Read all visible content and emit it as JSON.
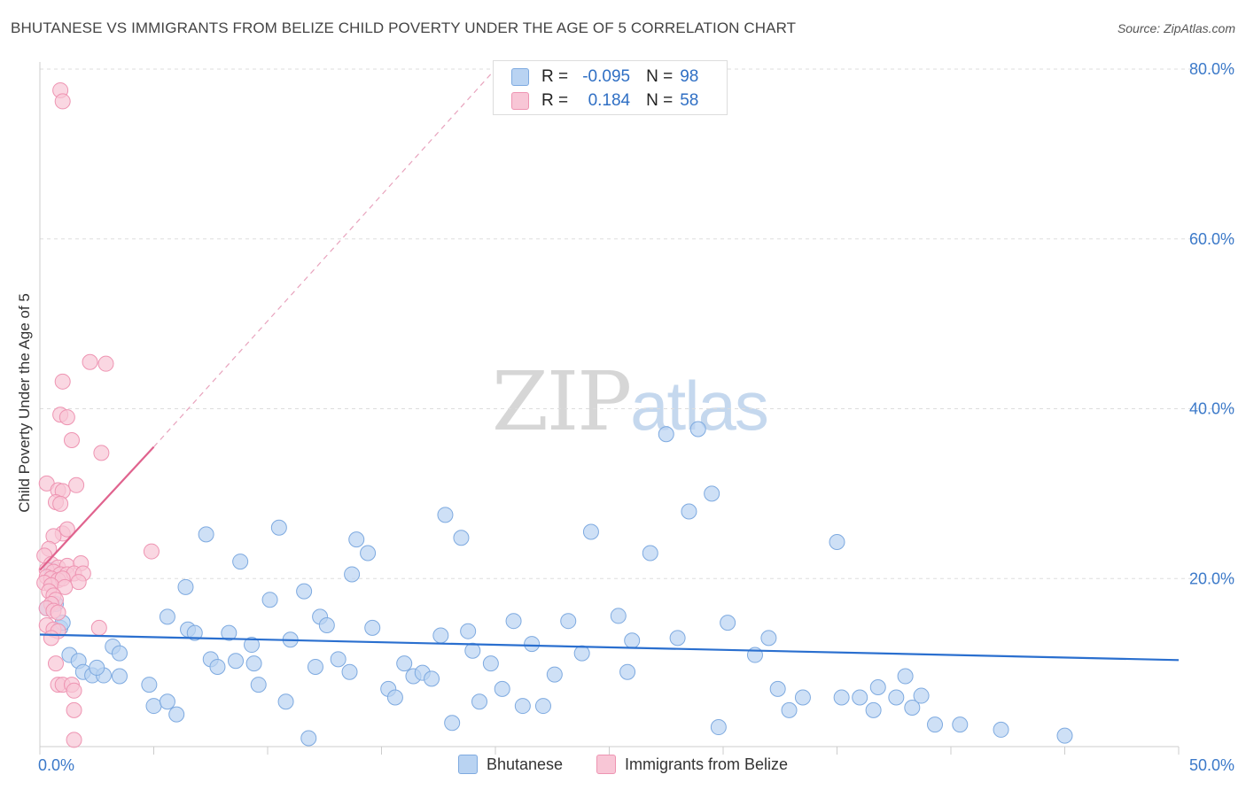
{
  "title": "BHUTANESE VS IMMIGRANTS FROM BELIZE CHILD POVERTY UNDER THE AGE OF 5 CORRELATION CHART",
  "source": "Source: ZipAtlas.com",
  "watermark": {
    "zip": "ZIP",
    "atlas": "atlas"
  },
  "legend_top": {
    "rows": [
      {
        "r_label": "R =",
        "r_value": "-0.095",
        "n_label": "N =",
        "n_value": "98"
      },
      {
        "r_label": "R =",
        "r_value": "0.184",
        "n_label": "N =",
        "n_value": "58"
      }
    ]
  },
  "legend_bottom": {
    "items": [
      "Bhutanese",
      "Immigrants from Belize"
    ]
  },
  "colors": {
    "blue_fill": "#b9d3f2",
    "blue_stroke": "#7eaae0",
    "blue_line": "#2a6fcf",
    "pink_fill": "#f8c6d6",
    "pink_stroke": "#ee94b2",
    "pink_line": "#e0638e",
    "grid": "#dddddd",
    "tick_text": "#3b79c9"
  },
  "chart_data": {
    "type": "scatter",
    "title": "BHUTANESE VS IMMIGRANTS FROM BELIZE CHILD POVERTY UNDER THE AGE OF 5 CORRELATION CHART",
    "xlabel": "",
    "ylabel": "Child Poverty Under the Age of 5",
    "xlim": [
      0,
      50
    ],
    "ylim": [
      0,
      82
    ],
    "x_tick_labels": [
      {
        "value": 0,
        "label": "0.0%"
      },
      {
        "value": 50,
        "label": "50.0%"
      }
    ],
    "y_tick_labels": [
      {
        "value": 20,
        "label": "20.0%"
      },
      {
        "value": 40,
        "label": "40.0%"
      },
      {
        "value": 60,
        "label": "60.0%"
      },
      {
        "value": 80,
        "label": "80.0%"
      }
    ],
    "series": [
      {
        "name": "Bhutanese",
        "r": -0.095,
        "n": 98,
        "trend": {
          "x": [
            0,
            50
          ],
          "y": [
            13.4,
            10.4
          ],
          "style": "solid"
        },
        "points": [
          [
            0.3,
            16.5
          ],
          [
            0.5,
            21.0
          ],
          [
            0.7,
            17.0
          ],
          [
            0.9,
            14.2
          ],
          [
            1.0,
            14.8
          ],
          [
            1.3,
            11.0
          ],
          [
            1.7,
            10.3
          ],
          [
            1.9,
            9.0
          ],
          [
            2.3,
            8.6
          ],
          [
            2.8,
            8.6
          ],
          [
            2.5,
            9.5
          ],
          [
            3.5,
            8.5
          ],
          [
            3.2,
            12.0
          ],
          [
            3.5,
            11.2
          ],
          [
            4.8,
            7.5
          ],
          [
            5.0,
            5.0
          ],
          [
            5.6,
            15.5
          ],
          [
            5.6,
            5.5
          ],
          [
            6.0,
            4.0
          ],
          [
            6.4,
            19.0
          ],
          [
            6.5,
            14.0
          ],
          [
            6.8,
            13.6
          ],
          [
            7.3,
            25.2
          ],
          [
            7.5,
            10.5
          ],
          [
            7.8,
            9.6
          ],
          [
            8.3,
            13.6
          ],
          [
            8.6,
            10.3
          ],
          [
            8.8,
            22.0
          ],
          [
            9.3,
            12.2
          ],
          [
            9.4,
            10.0
          ],
          [
            9.6,
            7.5
          ],
          [
            10.1,
            17.5
          ],
          [
            10.5,
            26.0
          ],
          [
            10.8,
            5.5
          ],
          [
            11.0,
            12.8
          ],
          [
            11.6,
            18.5
          ],
          [
            11.8,
            1.2
          ],
          [
            12.1,
            9.6
          ],
          [
            12.3,
            15.5
          ],
          [
            12.6,
            14.5
          ],
          [
            13.1,
            10.5
          ],
          [
            13.6,
            9.0
          ],
          [
            13.7,
            20.5
          ],
          [
            13.9,
            24.6
          ],
          [
            14.4,
            23.0
          ],
          [
            14.6,
            14.2
          ],
          [
            15.3,
            7.0
          ],
          [
            15.6,
            6.0
          ],
          [
            16.0,
            10.0
          ],
          [
            16.4,
            8.5
          ],
          [
            16.8,
            8.9
          ],
          [
            17.2,
            8.2
          ],
          [
            17.6,
            13.3
          ],
          [
            17.8,
            27.5
          ],
          [
            18.1,
            3.0
          ],
          [
            18.5,
            24.8
          ],
          [
            18.8,
            13.8
          ],
          [
            19.0,
            11.5
          ],
          [
            19.3,
            5.5
          ],
          [
            19.8,
            10.0
          ],
          [
            20.3,
            7.0
          ],
          [
            20.8,
            15.0
          ],
          [
            21.2,
            5.0
          ],
          [
            21.6,
            12.3
          ],
          [
            22.1,
            5.0
          ],
          [
            22.6,
            8.7
          ],
          [
            23.2,
            15.0
          ],
          [
            23.8,
            11.2
          ],
          [
            24.2,
            25.5
          ],
          [
            25.4,
            15.6
          ],
          [
            25.8,
            9.0
          ],
          [
            26.0,
            12.7
          ],
          [
            26.8,
            23.0
          ],
          [
            27.5,
            37.0
          ],
          [
            28.0,
            13.0
          ],
          [
            28.5,
            27.9
          ],
          [
            28.9,
            37.6
          ],
          [
            29.5,
            30.0
          ],
          [
            29.8,
            2.5
          ],
          [
            30.2,
            14.8
          ],
          [
            31.4,
            11.0
          ],
          [
            32.0,
            13.0
          ],
          [
            32.4,
            7.0
          ],
          [
            32.9,
            4.5
          ],
          [
            33.5,
            6.0
          ],
          [
            35.0,
            24.3
          ],
          [
            35.2,
            6.0
          ],
          [
            36.0,
            6.0
          ],
          [
            36.6,
            4.5
          ],
          [
            36.8,
            7.2
          ],
          [
            37.6,
            6.0
          ],
          [
            38.0,
            8.5
          ],
          [
            38.3,
            4.8
          ],
          [
            38.7,
            6.2
          ],
          [
            39.3,
            2.8
          ],
          [
            40.4,
            2.8
          ],
          [
            42.2,
            2.2
          ],
          [
            45.0,
            1.5
          ]
        ]
      },
      {
        "name": "Immigrants from Belize",
        "r": 0.184,
        "n": 58,
        "trend": {
          "x": [
            0,
            5
          ],
          "y": [
            21.0,
            35.5
          ],
          "style": "solid",
          "dashed_extension": {
            "x": [
              5,
              20
            ],
            "y": [
              35.5,
              80.0
            ]
          }
        },
        "points": [
          [
            0.9,
            77.5
          ],
          [
            1.0,
            76.2
          ],
          [
            2.2,
            45.5
          ],
          [
            2.9,
            45.3
          ],
          [
            1.0,
            43.2
          ],
          [
            0.9,
            39.3
          ],
          [
            1.2,
            39.0
          ],
          [
            1.4,
            36.3
          ],
          [
            2.7,
            34.8
          ],
          [
            0.3,
            31.2
          ],
          [
            1.6,
            31.0
          ],
          [
            0.8,
            30.4
          ],
          [
            1.0,
            30.3
          ],
          [
            0.7,
            29.0
          ],
          [
            0.9,
            28.8
          ],
          [
            1.0,
            25.3
          ],
          [
            1.2,
            25.8
          ],
          [
            0.6,
            25.0
          ],
          [
            0.4,
            23.5
          ],
          [
            0.2,
            22.7
          ],
          [
            0.5,
            21.7
          ],
          [
            0.8,
            21.3
          ],
          [
            1.2,
            21.5
          ],
          [
            1.8,
            21.8
          ],
          [
            0.3,
            21.0
          ],
          [
            0.6,
            20.8
          ],
          [
            0.9,
            20.5
          ],
          [
            1.2,
            20.5
          ],
          [
            1.5,
            20.6
          ],
          [
            1.9,
            20.6
          ],
          [
            0.3,
            20.2
          ],
          [
            0.5,
            20.0
          ],
          [
            0.8,
            19.8
          ],
          [
            1.0,
            20.0
          ],
          [
            1.7,
            19.6
          ],
          [
            0.2,
            19.5
          ],
          [
            0.5,
            19.2
          ],
          [
            1.1,
            19.0
          ],
          [
            0.4,
            18.5
          ],
          [
            0.6,
            18.0
          ],
          [
            0.7,
            17.5
          ],
          [
            0.5,
            17.0
          ],
          [
            0.3,
            16.5
          ],
          [
            0.6,
            16.2
          ],
          [
            0.8,
            16.0
          ],
          [
            0.3,
            14.5
          ],
          [
            0.6,
            14.0
          ],
          [
            0.8,
            13.8
          ],
          [
            2.6,
            14.2
          ],
          [
            0.5,
            13.0
          ],
          [
            0.7,
            10.0
          ],
          [
            0.8,
            7.5
          ],
          [
            1.0,
            7.5
          ],
          [
            1.4,
            7.5
          ],
          [
            1.5,
            6.8
          ],
          [
            1.5,
            4.5
          ],
          [
            1.5,
            1.0
          ],
          [
            4.9,
            23.2
          ]
        ]
      }
    ]
  }
}
